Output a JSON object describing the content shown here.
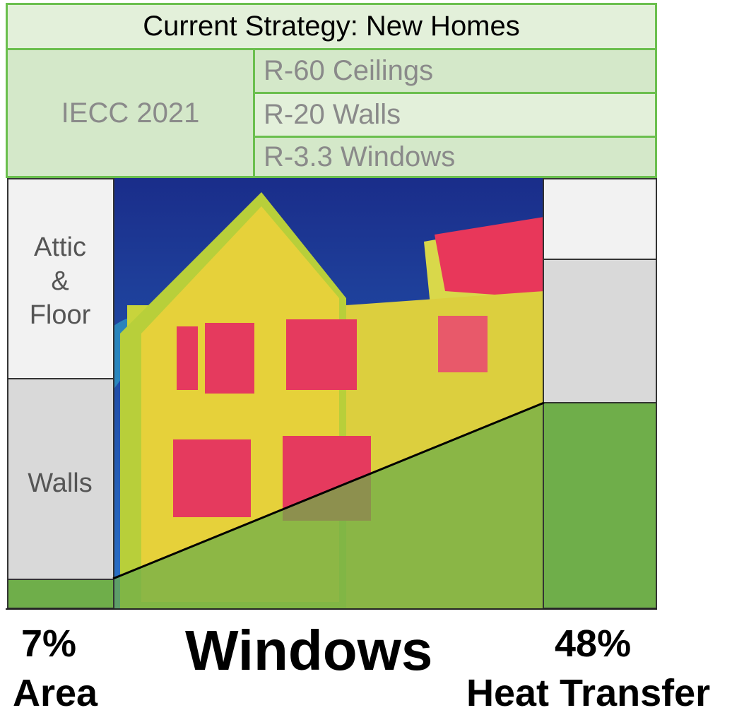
{
  "table": {
    "title": "Current Strategy: New Homes",
    "code": "IECC 2021",
    "rows": [
      "R-60 Ceilings",
      "R-20 Walls",
      "R-3.3 Windows"
    ]
  },
  "left_bar": {
    "labels": [
      "Attic\n&\nFloor",
      "Walls"
    ]
  },
  "footer": {
    "left_pct": "7%",
    "left_label": "Area",
    "center": "Windows",
    "right_pct": "48%",
    "right_label": "Heat Transfer"
  },
  "colors": {
    "table_border": "#6bbf4e",
    "windows_green": "#6fae4a",
    "walls_gray": "#d9d9d9",
    "attic_light": "#f2f2f2"
  }
}
